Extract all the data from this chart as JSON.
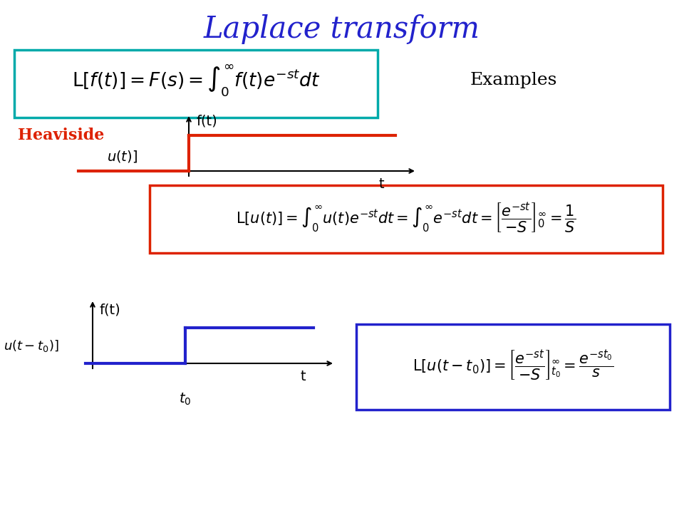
{
  "title": "Laplace transform",
  "title_color": "#2222CC",
  "title_fontsize": 30,
  "background_color": "#ffffff",
  "main_box_color": "#00AAAA",
  "examples_label": "Examples",
  "heaviside_label": "Heaviside",
  "heaviside_color": "#DD2200",
  "step1_box_color": "#DD2200",
  "step2_box_color": "#2222CC",
  "graph1_color": "#DD2200",
  "graph2_color": "#2222CC"
}
